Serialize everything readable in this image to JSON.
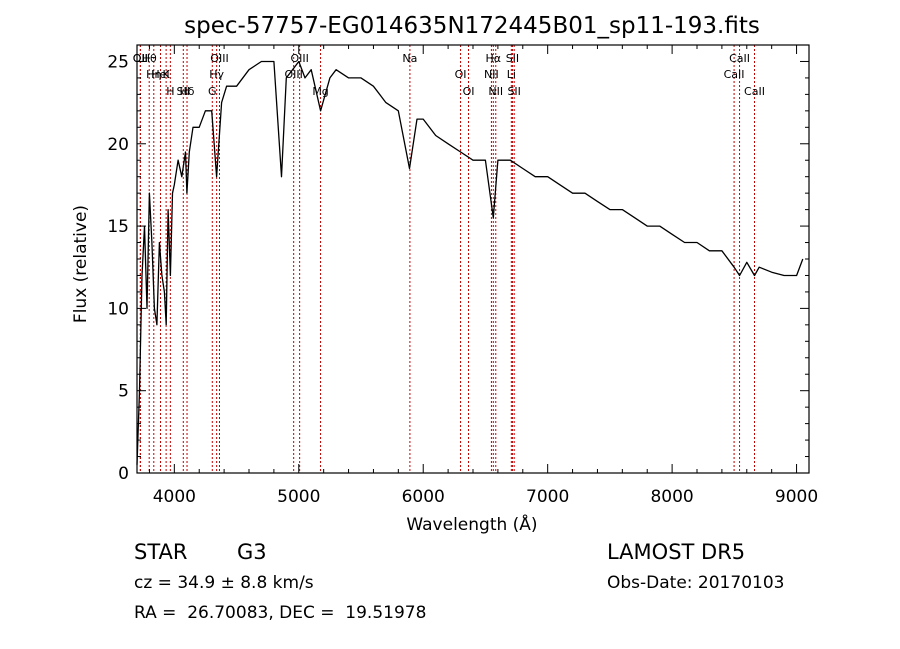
{
  "chart_data": {
    "type": "line",
    "title": "spec-57757-EG014635N172445B01_sp11-193.fits",
    "xlabel": "Wavelength (Å)",
    "ylabel": "Flux (relative)",
    "xlim": [
      3700,
      9100
    ],
    "ylim": [
      0,
      26
    ],
    "xticks": [
      4000,
      5000,
      6000,
      7000,
      8000,
      9000
    ],
    "yticks": [
      0,
      5,
      10,
      15,
      20,
      25
    ],
    "grid": false,
    "series": [
      {
        "x": [
          3700,
          3720,
          3740,
          3760,
          3780,
          3800,
          3820,
          3840,
          3860,
          3880,
          3900,
          3920,
          3935,
          3950,
          3968,
          3985,
          4000,
          4030,
          4060,
          4090,
          4101,
          4120,
          4150,
          4200,
          4250,
          4300,
          4340,
          4380,
          4420,
          4500,
          4600,
          4700,
          4800,
          4861,
          4900,
          4950,
          5000,
          5050,
          5100,
          5175,
          5250,
          5300,
          5400,
          5500,
          5600,
          5700,
          5800,
          5890,
          5950,
          6000,
          6100,
          6200,
          6300,
          6400,
          6500,
          6563,
          6600,
          6700,
          6800,
          6900,
          7000,
          7100,
          7200,
          7300,
          7400,
          7500,
          7600,
          7700,
          7800,
          7900,
          8000,
          8100,
          8200,
          8300,
          8400,
          8498,
          8542,
          8600,
          8662,
          8700,
          8800,
          8900,
          9000,
          9050
        ],
        "y": [
          0.5,
          5,
          12,
          15,
          10,
          17,
          14,
          10,
          9,
          14,
          12,
          11,
          9,
          16,
          12,
          17,
          17.5,
          19,
          18,
          19.5,
          17,
          19.5,
          21,
          21,
          22,
          22,
          18,
          22.5,
          23.5,
          23.5,
          24.5,
          25,
          25,
          18,
          24,
          24.5,
          25,
          24,
          24.5,
          22,
          24,
          24.5,
          24,
          24,
          23.5,
          22.5,
          22,
          18.5,
          21.5,
          21.5,
          20.5,
          20,
          19.5,
          19,
          19,
          15.5,
          19,
          19,
          18.5,
          18,
          18,
          17.5,
          17,
          17,
          16.5,
          16,
          16,
          15.5,
          15,
          15,
          14.5,
          14,
          14,
          13.5,
          13.5,
          12.5,
          12,
          12.8,
          12,
          12.5,
          12.2,
          12,
          12,
          13
        ]
      }
    ],
    "lines": [
      {
        "label": "Hθ",
        "x": 3798
      },
      {
        "label": "K",
        "x": 3934
      },
      {
        "label": "Hδ",
        "x": 4102
      },
      {
        "label": "OII",
        "x": 3727
      },
      {
        "label": "HeI",
        "x": 3889
      },
      {
        "label": "SII",
        "x": 4072
      },
      {
        "label": "OII",
        "x": 3727
      },
      {
        "label": "Hη",
        "x": 3835
      },
      {
        "label": "H",
        "x": 3968
      },
      {
        "label": "OIII",
        "x": 4363
      },
      {
        "label": "Hγ",
        "x": 4340
      },
      {
        "label": "G",
        "x": 4305
      },
      {
        "label": "OIII",
        "x": 5007
      },
      {
        "label": "OIII",
        "x": 4959
      },
      {
        "label": "Mg",
        "x": 5175
      },
      {
        "label": "Na",
        "x": 5893
      },
      {
        "label": "OI",
        "x": 6300
      },
      {
        "label": "OI",
        "x": 6364
      },
      {
        "label": "Hα",
        "x": 6563
      },
      {
        "label": "NII",
        "x": 6548
      },
      {
        "label": "NII",
        "x": 6583
      },
      {
        "label": "SII",
        "x": 6717
      },
      {
        "label": "Li",
        "x": 6708
      },
      {
        "label": "SII",
        "x": 6731
      },
      {
        "label": "CaII",
        "x": 8542
      },
      {
        "label": "CaII",
        "x": 8498
      },
      {
        "label": "CaII",
        "x": 8662
      }
    ]
  },
  "info": {
    "class": "STAR",
    "subclass": "G3",
    "survey": "LAMOST DR5",
    "cz": "cz = 34.9 ± 8.8 km/s",
    "obs_date": "Obs-Date: 20170103",
    "coords": "RA =  26.70083, DEC =  19.51978"
  }
}
